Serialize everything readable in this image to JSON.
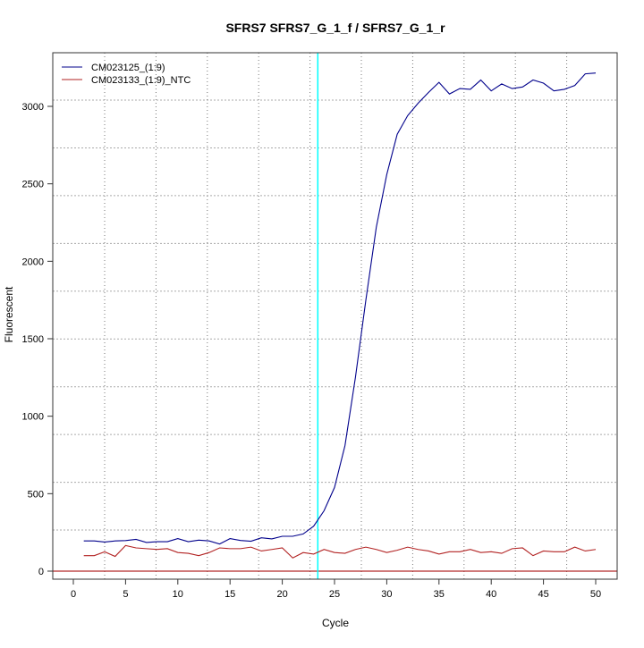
{
  "chart_data": {
    "type": "line",
    "title": "SFRS7  SFRS7_G_1_f / SFRS7_G_1_r",
    "xlabel": "Cycle",
    "ylabel": "Fluorescent",
    "xlim": [
      -2,
      52
    ],
    "ylim": [
      -50,
      3340
    ],
    "xticks": [
      0,
      5,
      10,
      15,
      20,
      25,
      30,
      35,
      40,
      45,
      50
    ],
    "yticks": [
      0,
      500,
      1000,
      1500,
      2000,
      2500,
      3000
    ],
    "grid": true,
    "legend_position": "top-left",
    "threshold_cycle": 23.4,
    "baseline_value": 0,
    "colors": {
      "threshold_cycle_line": "#00ffff",
      "baseline_line": "#b22222"
    },
    "x": [
      1,
      2,
      3,
      4,
      5,
      6,
      7,
      8,
      9,
      10,
      11,
      12,
      13,
      14,
      15,
      16,
      17,
      18,
      19,
      20,
      21,
      22,
      23,
      24,
      25,
      26,
      27,
      28,
      29,
      30,
      31,
      32,
      33,
      34,
      35,
      36,
      37,
      38,
      39,
      40,
      41,
      42,
      43,
      44,
      45,
      46,
      47,
      48,
      49,
      50
    ],
    "series": [
      {
        "name": "CM023125_(1:9)",
        "color": "#00008b",
        "values": [
          195,
          195,
          188,
          195,
          197,
          205,
          185,
          190,
          190,
          210,
          190,
          200,
          195,
          175,
          210,
          198,
          193,
          215,
          208,
          225,
          225,
          240,
          290,
          390,
          540,
          810,
          1250,
          1750,
          2220,
          2560,
          2820,
          2940,
          3020,
          3090,
          3155,
          3080,
          3115,
          3110,
          3170,
          3100,
          3145,
          3115,
          3125,
          3170,
          3150,
          3100,
          3110,
          3135,
          3210,
          3215
        ]
      },
      {
        "name": "CM023133_(1:9)_NTC",
        "color": "#b22222",
        "values": [
          100,
          100,
          125,
          95,
          165,
          150,
          145,
          140,
          145,
          120,
          115,
          100,
          120,
          150,
          145,
          145,
          155,
          130,
          140,
          150,
          85,
          120,
          110,
          140,
          120,
          115,
          140,
          155,
          140,
          120,
          135,
          155,
          140,
          130,
          110,
          125,
          125,
          140,
          120,
          125,
          115,
          145,
          150,
          100,
          130,
          125,
          125,
          155,
          130,
          140
        ]
      }
    ]
  }
}
